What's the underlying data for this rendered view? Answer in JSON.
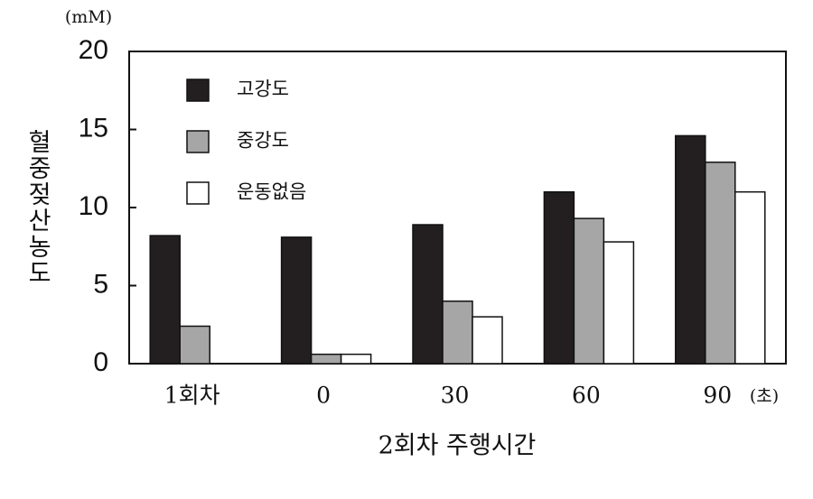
{
  "chart_data": {
    "type": "bar",
    "y_unit": "(mM)",
    "y_label": "혈중젖산농도",
    "x_label": "2회차 주행시간",
    "x_unit": "(초)",
    "categories": [
      "1회차",
      "0",
      "30",
      "60",
      "90"
    ],
    "series": [
      {
        "name": "고강도",
        "color": "#231f20",
        "values": [
          8.2,
          8.1,
          8.9,
          11.0,
          14.6
        ]
      },
      {
        "name": "중강도",
        "color": "#a6a6a6",
        "values": [
          2.4,
          0.6,
          4.0,
          9.3,
          12.9
        ]
      },
      {
        "name": "운동없음",
        "color": "#ffffff",
        "values": [
          null,
          0.6,
          3.0,
          7.8,
          11.0
        ]
      }
    ],
    "ylim": [
      0,
      20
    ],
    "yticks": [
      0,
      5,
      10,
      15,
      20
    ],
    "legend": "upper-left"
  }
}
